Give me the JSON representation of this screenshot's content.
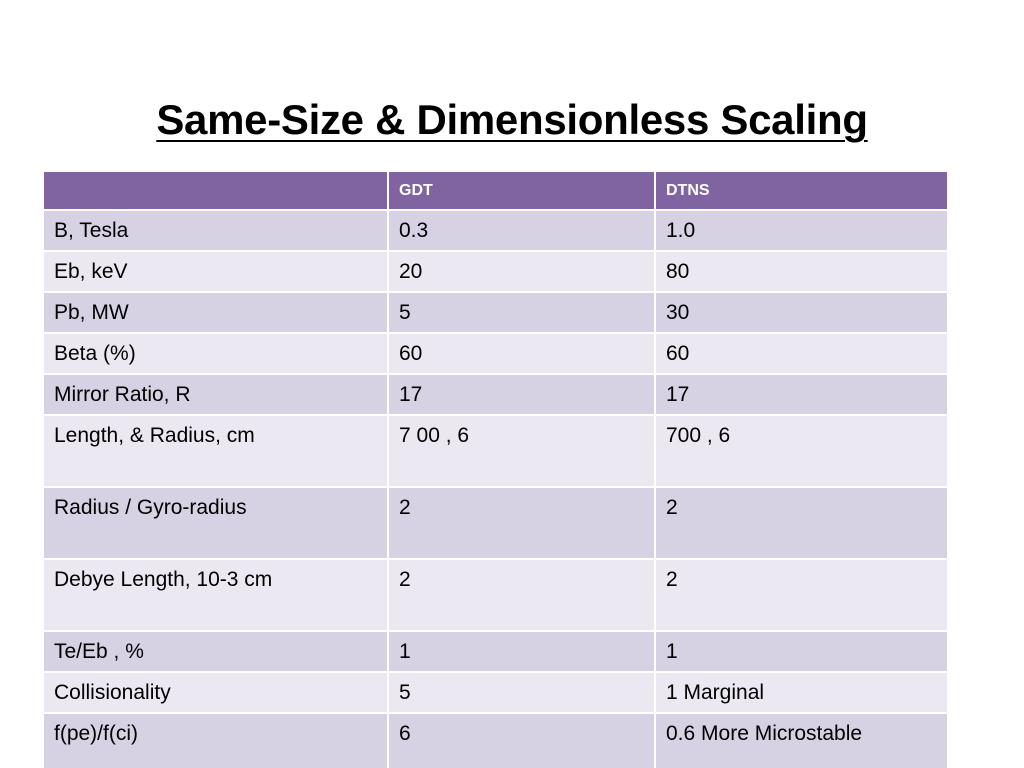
{
  "slide": {
    "title": "Same-Size & Dimensionless Scaling"
  },
  "table": {
    "headers": [
      "",
      "GDT",
      "DTNS"
    ],
    "rows": [
      [
        "B, Tesla",
        "0.3",
        "1.0"
      ],
      [
        "Eb, keV",
        "20",
        "80"
      ],
      [
        "Pb, MW",
        "5",
        "30"
      ],
      [
        "Beta (%)",
        "60",
        "60"
      ],
      [
        "Mirror Ratio, R",
        "17",
        "17"
      ],
      [
        "Length, & Radius,  cm",
        "7 00 , 6",
        "700 , 6"
      ],
      [
        "Radius / Gyro-radius",
        "2",
        "2"
      ],
      [
        "Debye Length, 10-3 cm",
        "2",
        "2"
      ],
      [
        "Te/Eb , %",
        "1",
        "1"
      ],
      [
        "Collisionality",
        "5",
        "1  Marginal"
      ],
      [
        "f(pe)/f(ci)",
        "6",
        "0.6   More Microstable"
      ]
    ]
  },
  "colors": {
    "header_bg": "#8064a2",
    "row_dark": "#d6d2e3",
    "row_light": "#ebe8f1"
  }
}
